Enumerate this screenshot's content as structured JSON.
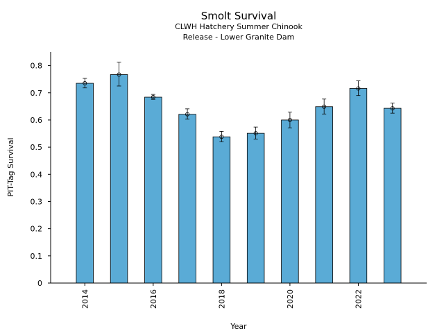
{
  "chart_data": {
    "type": "bar",
    "title": "Smolt Survival",
    "subtitle_lines": [
      "CLWH Hatchery Summer Chinook",
      "Release - Lower Granite Dam"
    ],
    "xlabel": "Year",
    "ylabel": "PIT-Tag Survival",
    "categories": [
      2014,
      2015,
      2016,
      2017,
      2018,
      2019,
      2020,
      2021,
      2022,
      2023
    ],
    "values": [
      0.735,
      0.767,
      0.684,
      0.621,
      0.538,
      0.551,
      0.6,
      0.649,
      0.716,
      0.643
    ],
    "error_low": [
      0.718,
      0.725,
      0.676,
      0.603,
      0.52,
      0.53,
      0.571,
      0.622,
      0.69,
      0.625
    ],
    "error_high": [
      0.753,
      0.813,
      0.694,
      0.641,
      0.558,
      0.574,
      0.629,
      0.677,
      0.744,
      0.662
    ],
    "x_ticks": [
      2014,
      2016,
      2018,
      2020,
      2022
    ],
    "y_ticks": [
      0,
      0.1,
      0.2,
      0.3,
      0.4,
      0.5,
      0.6,
      0.7,
      0.8
    ],
    "ylim": [
      0,
      0.85
    ],
    "xlim": [
      2013,
      2024
    ],
    "grid": false,
    "bar_color": "#5aabd6",
    "bar_edge_color": "#000000"
  }
}
